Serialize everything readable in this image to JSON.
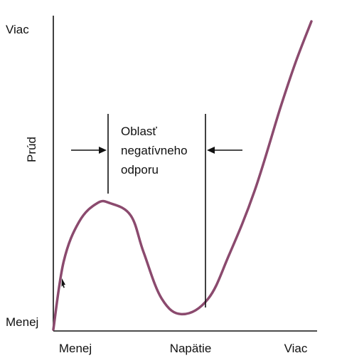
{
  "chart_data": {
    "type": "line",
    "xlabel": "Napätie",
    "ylabel": "Prúd",
    "x_tick_labels": {
      "low": "Menej",
      "high": "Viac"
    },
    "y_tick_labels": {
      "low": "Menej",
      "high": "Viac"
    },
    "annotation": {
      "lines": [
        "Oblasť",
        "negatívneho",
        "odporu"
      ]
    },
    "series": [
      {
        "color": "#8b4a6e",
        "x": [
          0.0,
          0.04,
          0.1,
          0.17,
          0.22,
          0.3,
          0.35,
          0.42,
          0.5,
          0.6,
          0.68,
          0.78,
          0.88,
          0.94,
          1.0
        ],
        "y": [
          0.0,
          0.22,
          0.35,
          0.41,
          0.41,
          0.37,
          0.25,
          0.1,
          0.05,
          0.1,
          0.24,
          0.45,
          0.72,
          0.87,
          1.0
        ]
      }
    ],
    "grid": false
  }
}
